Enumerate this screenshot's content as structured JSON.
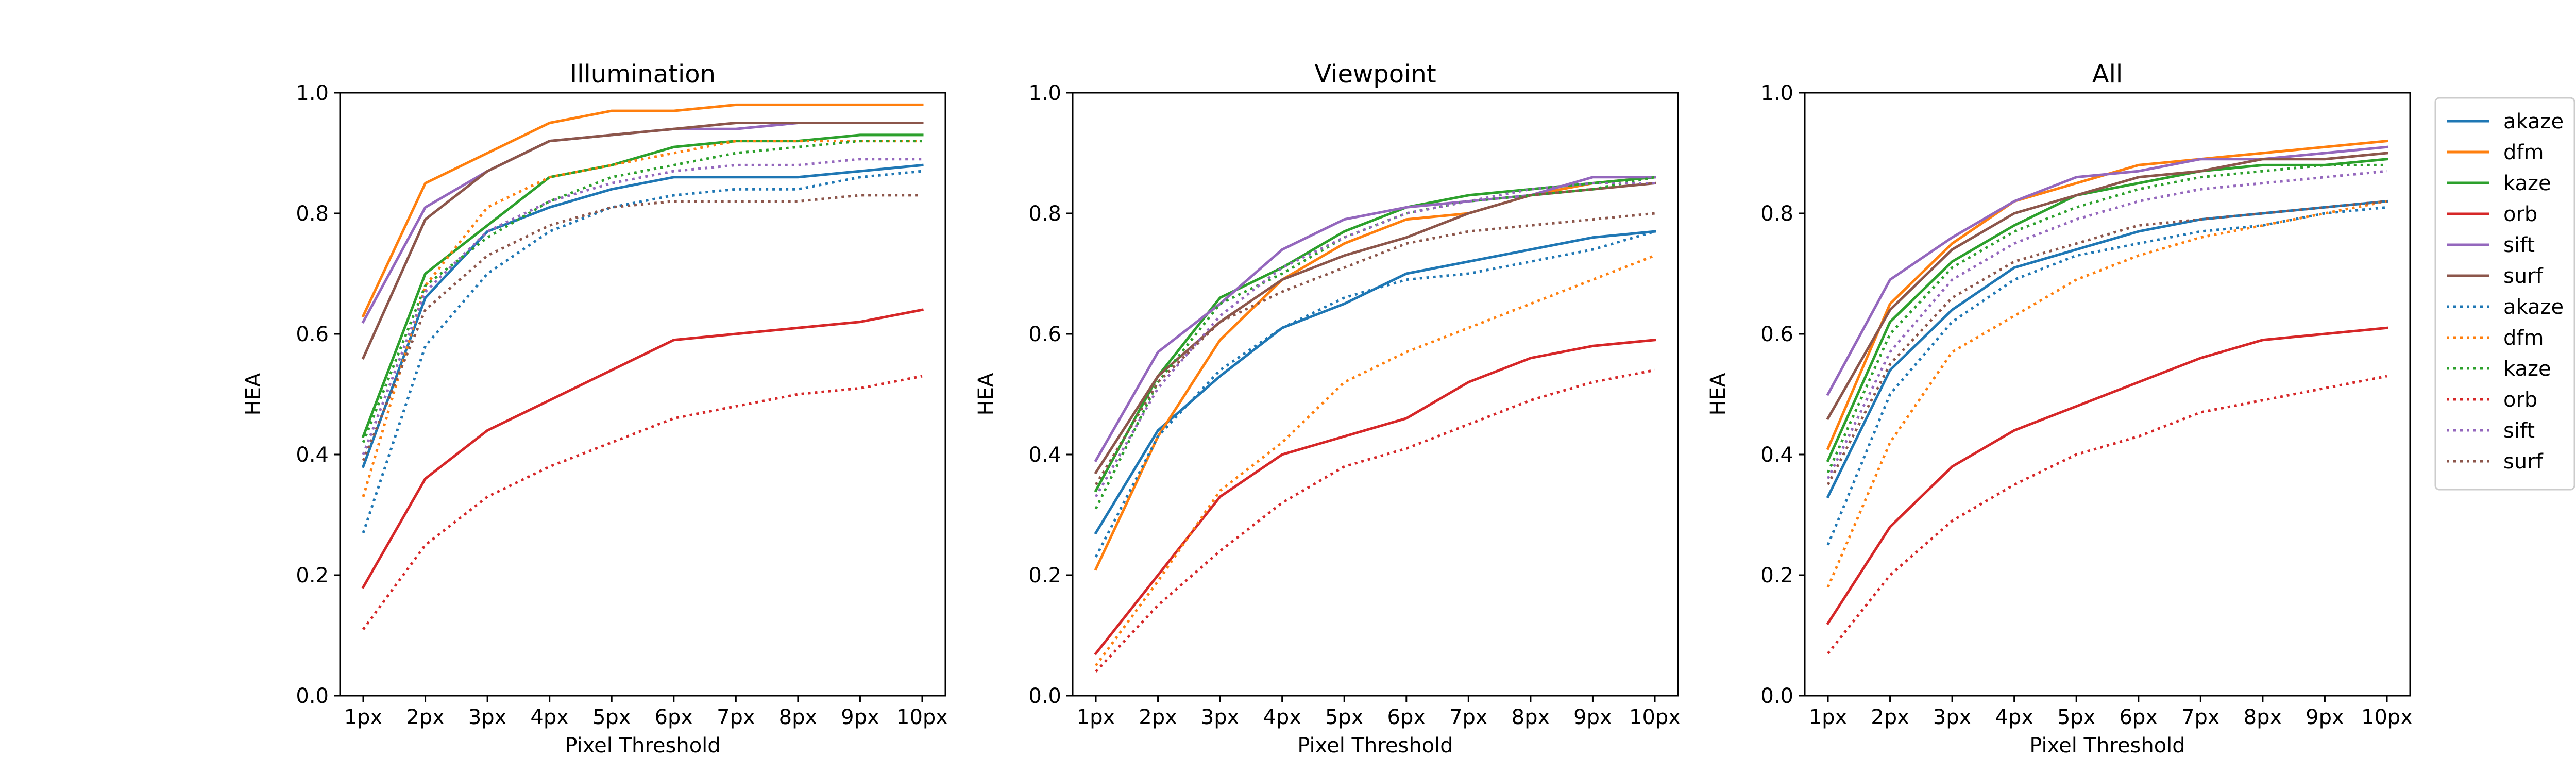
{
  "chart_data": [
    {
      "type": "line",
      "title": "Illumination",
      "xlabel": "Pixel Threshold",
      "ylabel": "HEA",
      "ylim": [
        0.0,
        1.0
      ],
      "yticks": [
        "0.0",
        "0.2",
        "0.4",
        "0.6",
        "0.8",
        "1.0"
      ],
      "categories": [
        "1px",
        "2px",
        "3px",
        "4px",
        "5px",
        "6px",
        "7px",
        "8px",
        "9px",
        "10px"
      ],
      "grid": false,
      "series": [
        {
          "name": "akaze",
          "style": "solid",
          "color": "#1f77b4",
          "values": [
            0.38,
            0.66,
            0.77,
            0.81,
            0.84,
            0.86,
            0.86,
            0.86,
            0.87,
            0.88
          ]
        },
        {
          "name": "dfm",
          "style": "solid",
          "color": "#ff7f0e",
          "values": [
            0.63,
            0.85,
            0.9,
            0.95,
            0.97,
            0.97,
            0.98,
            0.98,
            0.98,
            0.98
          ]
        },
        {
          "name": "kaze",
          "style": "solid",
          "color": "#2ca02c",
          "values": [
            0.43,
            0.7,
            0.78,
            0.86,
            0.88,
            0.91,
            0.92,
            0.92,
            0.93,
            0.93
          ]
        },
        {
          "name": "orb",
          "style": "solid",
          "color": "#d62728",
          "values": [
            0.18,
            0.36,
            0.44,
            0.49,
            0.54,
            0.59,
            0.6,
            0.61,
            0.62,
            0.64
          ]
        },
        {
          "name": "sift",
          "style": "solid",
          "color": "#9467bd",
          "values": [
            0.62,
            0.81,
            0.87,
            0.92,
            0.93,
            0.94,
            0.94,
            0.95,
            0.95,
            0.95
          ]
        },
        {
          "name": "surf",
          "style": "solid",
          "color": "#8c564b",
          "values": [
            0.56,
            0.79,
            0.87,
            0.92,
            0.93,
            0.94,
            0.95,
            0.95,
            0.95,
            0.95
          ]
        },
        {
          "name": "akaze",
          "style": "dotted",
          "color": "#1f77b4",
          "values": [
            0.27,
            0.58,
            0.7,
            0.77,
            0.81,
            0.83,
            0.84,
            0.84,
            0.86,
            0.87
          ]
        },
        {
          "name": "dfm",
          "style": "dotted",
          "color": "#ff7f0e",
          "values": [
            0.33,
            0.68,
            0.81,
            0.86,
            0.88,
            0.9,
            0.92,
            0.92,
            0.92,
            0.92
          ]
        },
        {
          "name": "kaze",
          "style": "dotted",
          "color": "#2ca02c",
          "values": [
            0.42,
            0.68,
            0.76,
            0.82,
            0.86,
            0.88,
            0.9,
            0.91,
            0.92,
            0.92
          ]
        },
        {
          "name": "orb",
          "style": "dotted",
          "color": "#d62728",
          "values": [
            0.11,
            0.25,
            0.33,
            0.38,
            0.42,
            0.46,
            0.48,
            0.5,
            0.51,
            0.53
          ]
        },
        {
          "name": "sift",
          "style": "dotted",
          "color": "#9467bd",
          "values": [
            0.4,
            0.67,
            0.77,
            0.82,
            0.85,
            0.87,
            0.88,
            0.88,
            0.89,
            0.89
          ]
        },
        {
          "name": "surf",
          "style": "dotted",
          "color": "#8c564b",
          "values": [
            0.39,
            0.64,
            0.73,
            0.78,
            0.81,
            0.82,
            0.82,
            0.82,
            0.83,
            0.83
          ]
        }
      ]
    },
    {
      "type": "line",
      "title": "Viewpoint",
      "xlabel": "Pixel Threshold",
      "ylabel": "HEA",
      "ylim": [
        0.0,
        1.0
      ],
      "yticks": [
        "0.0",
        "0.2",
        "0.4",
        "0.6",
        "0.8",
        "1.0"
      ],
      "categories": [
        "1px",
        "2px",
        "3px",
        "4px",
        "5px",
        "6px",
        "7px",
        "8px",
        "9px",
        "10px"
      ],
      "grid": false,
      "series": [
        {
          "name": "akaze",
          "style": "solid",
          "color": "#1f77b4",
          "values": [
            0.27,
            0.44,
            0.53,
            0.61,
            0.65,
            0.7,
            0.72,
            0.74,
            0.76,
            0.77
          ]
        },
        {
          "name": "dfm",
          "style": "solid",
          "color": "#ff7f0e",
          "values": [
            0.21,
            0.43,
            0.59,
            0.69,
            0.75,
            0.79,
            0.8,
            0.83,
            0.85,
            0.86
          ]
        },
        {
          "name": "kaze",
          "style": "solid",
          "color": "#2ca02c",
          "values": [
            0.34,
            0.53,
            0.66,
            0.71,
            0.77,
            0.81,
            0.83,
            0.84,
            0.85,
            0.86
          ]
        },
        {
          "name": "orb",
          "style": "solid",
          "color": "#d62728",
          "values": [
            0.07,
            0.2,
            0.33,
            0.4,
            0.43,
            0.46,
            0.52,
            0.56,
            0.58,
            0.59
          ]
        },
        {
          "name": "sift",
          "style": "solid",
          "color": "#9467bd",
          "values": [
            0.39,
            0.57,
            0.65,
            0.74,
            0.79,
            0.81,
            0.82,
            0.83,
            0.86,
            0.86
          ]
        },
        {
          "name": "surf",
          "style": "solid",
          "color": "#8c564b",
          "values": [
            0.37,
            0.53,
            0.62,
            0.69,
            0.73,
            0.76,
            0.8,
            0.83,
            0.84,
            0.85
          ]
        },
        {
          "name": "akaze",
          "style": "dotted",
          "color": "#1f77b4",
          "values": [
            0.23,
            0.43,
            0.54,
            0.61,
            0.66,
            0.69,
            0.7,
            0.72,
            0.74,
            0.77
          ]
        },
        {
          "name": "dfm",
          "style": "dotted",
          "color": "#ff7f0e",
          "values": [
            0.05,
            0.19,
            0.34,
            0.42,
            0.52,
            0.57,
            0.61,
            0.65,
            0.69,
            0.73
          ]
        },
        {
          "name": "kaze",
          "style": "dotted",
          "color": "#2ca02c",
          "values": [
            0.31,
            0.52,
            0.65,
            0.7,
            0.76,
            0.8,
            0.82,
            0.83,
            0.84,
            0.86
          ]
        },
        {
          "name": "orb",
          "style": "dotted",
          "color": "#d62728",
          "values": [
            0.04,
            0.15,
            0.24,
            0.32,
            0.38,
            0.41,
            0.45,
            0.49,
            0.52,
            0.54
          ]
        },
        {
          "name": "sift",
          "style": "dotted",
          "color": "#9467bd",
          "values": [
            0.33,
            0.51,
            0.63,
            0.71,
            0.76,
            0.8,
            0.82,
            0.84,
            0.85,
            0.85
          ]
        },
        {
          "name": "surf",
          "style": "dotted",
          "color": "#8c564b",
          "values": [
            0.35,
            0.52,
            0.62,
            0.67,
            0.71,
            0.75,
            0.77,
            0.78,
            0.79,
            0.8
          ]
        }
      ]
    },
    {
      "type": "line",
      "title": "All",
      "xlabel": "Pixel Threshold",
      "ylabel": "HEA",
      "ylim": [
        0.0,
        1.0
      ],
      "yticks": [
        "0.0",
        "0.2",
        "0.4",
        "0.6",
        "0.8",
        "1.0"
      ],
      "categories": [
        "1px",
        "2px",
        "3px",
        "4px",
        "5px",
        "6px",
        "7px",
        "8px",
        "9px",
        "10px"
      ],
      "grid": false,
      "series": [
        {
          "name": "akaze",
          "style": "solid",
          "color": "#1f77b4",
          "values": [
            0.33,
            0.54,
            0.64,
            0.71,
            0.74,
            0.77,
            0.79,
            0.8,
            0.81,
            0.82
          ]
        },
        {
          "name": "dfm",
          "style": "solid",
          "color": "#ff7f0e",
          "values": [
            0.41,
            0.65,
            0.75,
            0.82,
            0.85,
            0.88,
            0.89,
            0.9,
            0.91,
            0.92
          ]
        },
        {
          "name": "kaze",
          "style": "solid",
          "color": "#2ca02c",
          "values": [
            0.39,
            0.62,
            0.72,
            0.78,
            0.83,
            0.85,
            0.87,
            0.88,
            0.88,
            0.89
          ]
        },
        {
          "name": "orb",
          "style": "solid",
          "color": "#d62728",
          "values": [
            0.12,
            0.28,
            0.38,
            0.44,
            0.48,
            0.52,
            0.56,
            0.59,
            0.6,
            0.61
          ]
        },
        {
          "name": "sift",
          "style": "solid",
          "color": "#9467bd",
          "values": [
            0.5,
            0.69,
            0.76,
            0.82,
            0.86,
            0.87,
            0.89,
            0.89,
            0.9,
            0.91
          ]
        },
        {
          "name": "surf",
          "style": "solid",
          "color": "#8c564b",
          "values": [
            0.46,
            0.64,
            0.74,
            0.8,
            0.83,
            0.86,
            0.87,
            0.89,
            0.89,
            0.9
          ]
        },
        {
          "name": "akaze",
          "style": "dotted",
          "color": "#1f77b4",
          "values": [
            0.25,
            0.5,
            0.62,
            0.69,
            0.73,
            0.75,
            0.77,
            0.78,
            0.8,
            0.81
          ]
        },
        {
          "name": "dfm",
          "style": "dotted",
          "color": "#ff7f0e",
          "values": [
            0.18,
            0.42,
            0.57,
            0.63,
            0.69,
            0.73,
            0.76,
            0.78,
            0.8,
            0.82
          ]
        },
        {
          "name": "kaze",
          "style": "dotted",
          "color": "#2ca02c",
          "values": [
            0.37,
            0.6,
            0.71,
            0.77,
            0.81,
            0.84,
            0.86,
            0.87,
            0.88,
            0.88
          ]
        },
        {
          "name": "orb",
          "style": "dotted",
          "color": "#d62728",
          "values": [
            0.07,
            0.2,
            0.29,
            0.35,
            0.4,
            0.43,
            0.47,
            0.49,
            0.51,
            0.53
          ]
        },
        {
          "name": "sift",
          "style": "dotted",
          "color": "#9467bd",
          "values": [
            0.36,
            0.57,
            0.69,
            0.75,
            0.79,
            0.82,
            0.84,
            0.85,
            0.86,
            0.87
          ]
        },
        {
          "name": "surf",
          "style": "dotted",
          "color": "#8c564b",
          "values": [
            0.35,
            0.55,
            0.66,
            0.72,
            0.75,
            0.78,
            0.79,
            0.8,
            0.81,
            0.82
          ]
        }
      ]
    }
  ],
  "legend": {
    "placement": "right",
    "entries": [
      {
        "label": "akaze",
        "style": "solid",
        "color": "#1f77b4"
      },
      {
        "label": "dfm",
        "style": "solid",
        "color": "#ff7f0e"
      },
      {
        "label": "kaze",
        "style": "solid",
        "color": "#2ca02c"
      },
      {
        "label": "orb",
        "style": "solid",
        "color": "#d62728"
      },
      {
        "label": "sift",
        "style": "solid",
        "color": "#9467bd"
      },
      {
        "label": "surf",
        "style": "solid",
        "color": "#8c564b"
      },
      {
        "label": "akaze",
        "style": "dotted",
        "color": "#1f77b4"
      },
      {
        "label": "dfm",
        "style": "dotted",
        "color": "#ff7f0e"
      },
      {
        "label": "kaze",
        "style": "dotted",
        "color": "#2ca02c"
      },
      {
        "label": "orb",
        "style": "dotted",
        "color": "#d62728"
      },
      {
        "label": "sift",
        "style": "dotted",
        "color": "#9467bd"
      },
      {
        "label": "surf",
        "style": "dotted",
        "color": "#8c564b"
      }
    ]
  }
}
